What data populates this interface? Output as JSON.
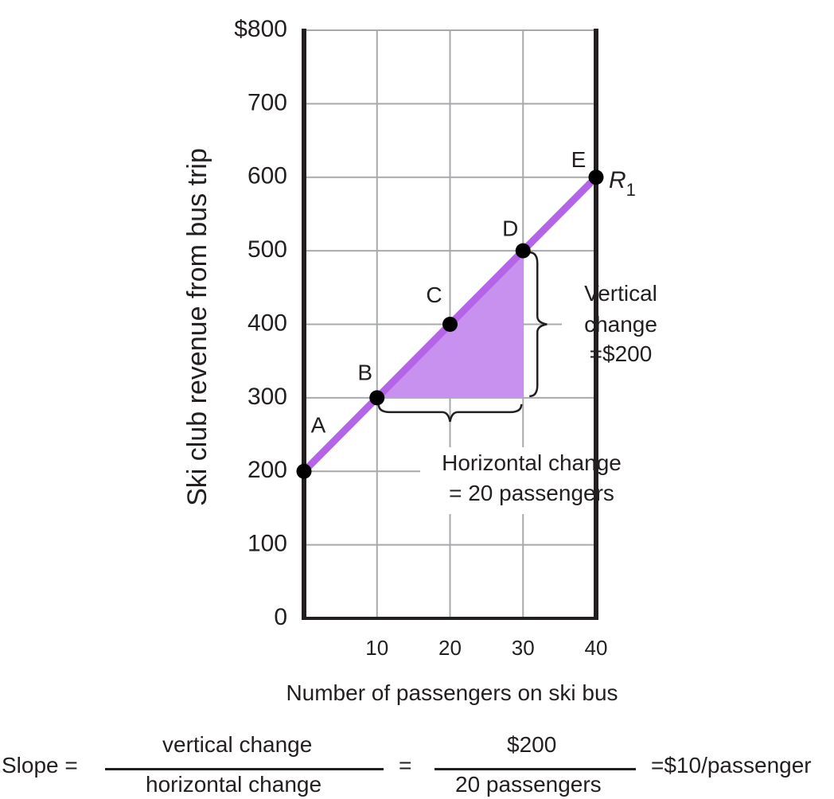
{
  "chart_data": {
    "type": "line",
    "ylabel": "Ski club revenue from bus trip",
    "xlabel": "Number of passengers on ski bus",
    "xlim": [
      0,
      40
    ],
    "ylim": [
      0,
      800
    ],
    "x_ticks": [
      10,
      20,
      30,
      40
    ],
    "x_tick_labels": [
      "10",
      "20",
      "30",
      "40"
    ],
    "y_ticks": [
      0,
      100,
      200,
      300,
      400,
      500,
      600,
      700,
      800
    ],
    "y_tick_labels": [
      "0",
      "100",
      "200",
      "300",
      "400",
      "500",
      "600",
      "700",
      "$800"
    ],
    "grid": true,
    "series": [
      {
        "name": "R1",
        "color": "#b464e6",
        "points": [
          {
            "label": "A",
            "x": 0,
            "y": 200
          },
          {
            "label": "B",
            "x": 10,
            "y": 300
          },
          {
            "label": "C",
            "x": 20,
            "y": 400
          },
          {
            "label": "D",
            "x": 30,
            "y": 500
          },
          {
            "label": "E",
            "x": 40,
            "y": 600
          }
        ]
      }
    ],
    "series_label": {
      "base": "R",
      "sub": "1"
    },
    "shaded_triangle": {
      "color": "#c891f0",
      "vertices": [
        [
          10,
          300
        ],
        [
          30,
          500
        ],
        [
          30,
          300
        ]
      ]
    },
    "annotations": {
      "vertical": [
        "Vertical",
        "change",
        "=$200"
      ],
      "horizontal": [
        "Horizontal change",
        "= 20 passengers"
      ]
    }
  },
  "formula": {
    "slope_label": "Slope =",
    "numerator_1": "vertical change",
    "denominator_1": "horizontal change",
    "equals": "=",
    "numerator_2": "$200",
    "denominator_2": "20 passengers",
    "result": "=$10/passenger"
  }
}
